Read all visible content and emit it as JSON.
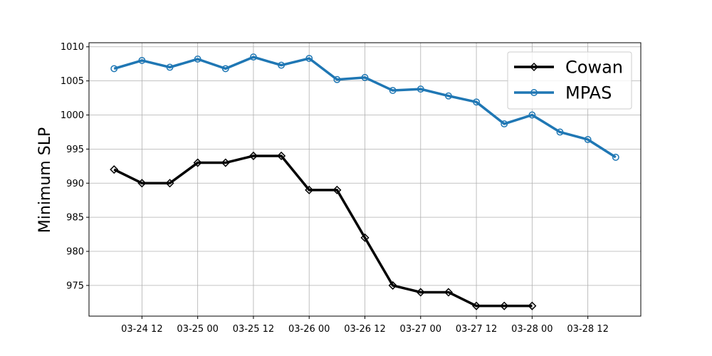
{
  "chart_data": {
    "type": "line",
    "title": "",
    "xlabel": "",
    "ylabel": "Minimum SLP",
    "x_tick_labels": [
      "03-24 12",
      "03-25 00",
      "03-25 12",
      "03-26 00",
      "03-26 12",
      "03-27 00",
      "03-27 12",
      "03-28 00",
      "03-28 12"
    ],
    "y_tick_labels": [
      "975",
      "980",
      "985",
      "990",
      "995",
      "1000",
      "1005",
      "1010"
    ],
    "ylim": [
      970.5,
      1010.6
    ],
    "grid": true,
    "legend_position": "top-right",
    "series": [
      {
        "name": "Cowan",
        "color": "#000000",
        "marker": "diamond",
        "x": [
          "03-24 06",
          "03-24 12",
          "03-24 18",
          "03-25 00",
          "03-25 06",
          "03-25 12",
          "03-25 18",
          "03-26 00",
          "03-26 06",
          "03-26 12",
          "03-26 18",
          "03-27 00",
          "03-27 06",
          "03-27 12",
          "03-27 18",
          "03-28 00"
        ],
        "values": [
          992,
          990,
          990,
          993,
          993,
          994,
          994,
          989,
          989,
          982,
          975,
          974,
          974,
          972,
          972,
          972
        ]
      },
      {
        "name": "MPAS",
        "color": "#1f77b4",
        "marker": "circle",
        "x": [
          "03-24 06",
          "03-24 12",
          "03-24 18",
          "03-25 00",
          "03-25 06",
          "03-25 12",
          "03-25 18",
          "03-26 00",
          "03-26 06",
          "03-26 12",
          "03-26 18",
          "03-27 00",
          "03-27 06",
          "03-27 12",
          "03-27 18",
          "03-28 00",
          "03-28 06",
          "03-28 12",
          "03-28 18"
        ],
        "values": [
          1006.8,
          1008.0,
          1007.0,
          1008.2,
          1006.8,
          1008.5,
          1007.3,
          1008.3,
          1005.2,
          1005.5,
          1003.6,
          1003.8,
          1002.8,
          1001.9,
          998.7,
          1000.0,
          997.5,
          996.4,
          993.8
        ]
      }
    ]
  }
}
